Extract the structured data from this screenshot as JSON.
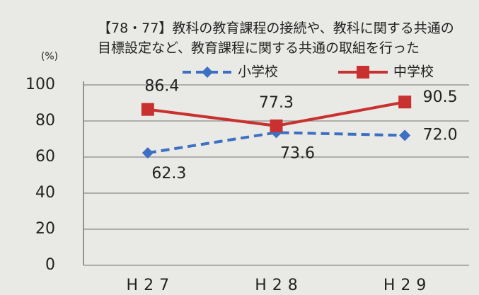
{
  "chart_data": {
    "type": "line",
    "title": "【78・77】教科の教育課程の接続や、教科に関する共通の目標設定など、教育課程に関する共通の取組を行った",
    "y_unit": "(%)",
    "categories": [
      "H27",
      "H28",
      "H29"
    ],
    "series": [
      {
        "name": "小学校",
        "color": "#3d6fc2",
        "values": [
          62.3,
          73.6,
          72.0
        ],
        "value_labels": [
          "62.3",
          "73.6",
          "72.0"
        ],
        "dashed": true,
        "marker": "diamond"
      },
      {
        "name": "中学校",
        "color": "#c8312f",
        "values": [
          86.4,
          77.3,
          90.5
        ],
        "value_labels": [
          "86.4",
          "77.3",
          "90.5"
        ],
        "dashed": false,
        "marker": "square"
      }
    ],
    "ylim": [
      0,
      100
    ],
    "yticks": [
      0,
      20,
      40,
      60,
      80,
      100
    ],
    "grid": true
  }
}
